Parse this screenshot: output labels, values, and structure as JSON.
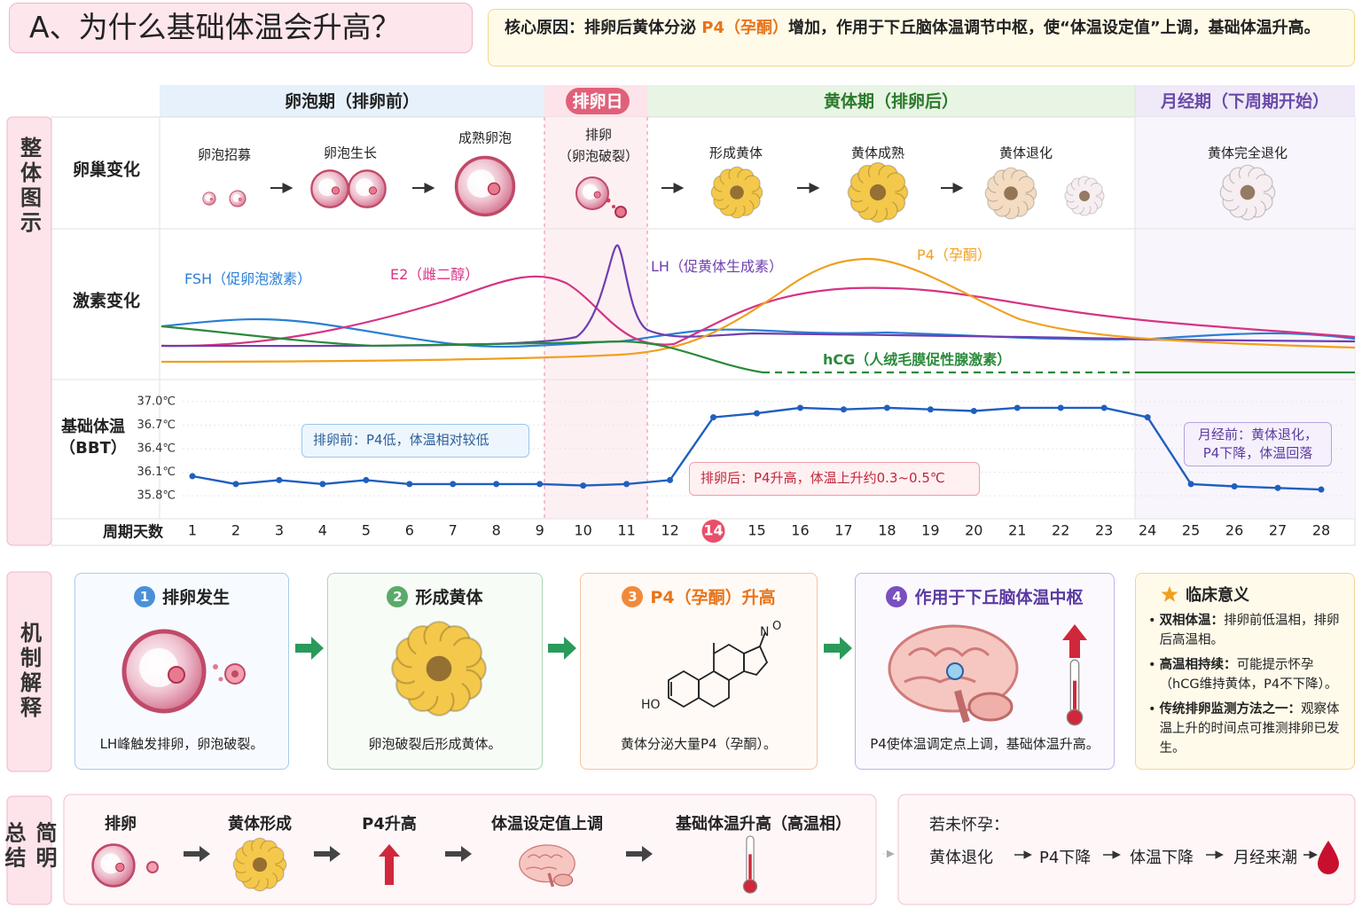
{
  "header": {
    "title": "A、为什么基础体温会升高？",
    "core": {
      "label": "核心原因：",
      "before": "排卵后黄体分泌 ",
      "highlight": "P4（孕酮）",
      "after": "增加，作用于下丘脑体温调节中枢，使“体温设定值”上调，基础体温升高。"
    }
  },
  "overview": {
    "section_label": "整体图示",
    "phases": [
      "卵泡期（排卵前）",
      "排卵日",
      "黄体期（排卵后）",
      "月经期（下周期开始）"
    ],
    "row_labels": {
      "ovary": "卵巢变化",
      "hormone": "激素变化",
      "bbt": "基础体温\n（BBT）",
      "days": "周期天数"
    },
    "ovary_stages": [
      "卵泡招募",
      "卵泡生长",
      "成熟卵泡",
      "排卵\n（卵泡破裂）",
      "形成黄体",
      "黄体成熟",
      "黄体退化",
      "黄体完全退化"
    ],
    "hormones": [
      {
        "name": "FSH（促卵泡激素）",
        "color": "#2a7fd4"
      },
      {
        "name": "E2（雌二醇）",
        "color": "#d63384"
      },
      {
        "name": "LH（促黄体生成素）",
        "color": "#6f3fb0"
      },
      {
        "name": "P4（孕酮）",
        "color": "#f0a020"
      },
      {
        "name": "hCG（人绒毛膜促性腺激素）",
        "color": "#2a8a3a"
      }
    ],
    "annotations": [
      "排卵前：P4低，体温相对较低",
      "排卵后：P4升高，体温上升约0.3~0.5℃",
      "月经前：黄体退化，\nP4下降，体温回落"
    ]
  },
  "chart_data": {
    "type": "line",
    "categories": [
      "1",
      "2",
      "3",
      "4",
      "5",
      "6",
      "7",
      "8",
      "9",
      "10",
      "11",
      "12",
      "14",
      "15",
      "16",
      "17",
      "18",
      "19",
      "20",
      "21",
      "22",
      "23",
      "24",
      "25",
      "26",
      "27",
      "28"
    ],
    "values": [
      36.05,
      35.95,
      36.0,
      35.95,
      36.0,
      35.95,
      35.95,
      35.95,
      35.95,
      35.93,
      35.95,
      36.0,
      36.8,
      36.85,
      36.92,
      36.9,
      36.92,
      36.9,
      36.88,
      36.92,
      36.92,
      36.92,
      36.8,
      35.95,
      35.92,
      35.9,
      35.88
    ],
    "color": "#1f5fbf",
    "ylim": [
      35.7,
      37.1
    ],
    "yticks": [
      {
        "value": 35.8,
        "label": "35.8℃"
      },
      {
        "value": 36.1,
        "label": "36.1℃"
      },
      {
        "value": 36.4,
        "label": "36.4℃"
      },
      {
        "value": 36.7,
        "label": "36.7℃"
      },
      {
        "value": 37.0,
        "label": "37.0℃"
      }
    ],
    "grid": true
  },
  "mechanism": {
    "section_label": "机制解释",
    "steps": [
      {
        "num": "1",
        "title": "排卵发生",
        "caption": "LH峰触发排卵，卵泡破裂。"
      },
      {
        "num": "2",
        "title": "形成黄体",
        "caption": "卵泡破裂后形成黄体。"
      },
      {
        "num": "3",
        "title": "P4（孕酮）升高",
        "caption": "黄体分泌大量P4（孕酮）。"
      },
      {
        "num": "4",
        "title": "作用于下丘脑体温中枢",
        "caption": "P4使体温调定点上调，基础体温升高。"
      }
    ],
    "molecule": [
      "HO",
      "N",
      "O"
    ],
    "clinical": {
      "title": "临床意义",
      "items": [
        {
          "term": "双相体温：",
          "text": "排卵前低温相，排卵后高温相。"
        },
        {
          "term": "高温相持续：",
          "text": "可能提示怀孕（hCG维持黄体，P4不下降）。"
        },
        {
          "term": "传统排卵监测方法之一：",
          "text": "观察体温上升的时间点可推测排卵已发生。"
        }
      ]
    }
  },
  "summary": {
    "section_label": "简明总结",
    "steps": [
      "排卵",
      "黄体形成",
      "P4升高",
      "体温设定值上调",
      "基础体温升高（高温相）"
    ],
    "if_not_pregnant": {
      "title": "若未怀孕：",
      "chain": [
        "黄体退化",
        "P4下降",
        "体温下降",
        "月经来潮"
      ]
    }
  }
}
